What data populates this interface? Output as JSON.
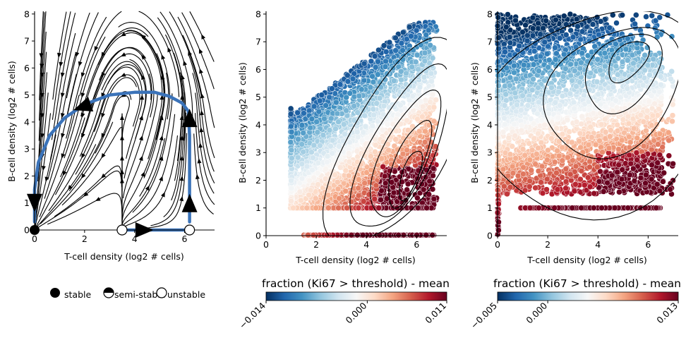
{
  "chart_data": [
    {
      "type": "streamplot",
      "xlabel": "T-cell density (log2 # cells)",
      "ylabel": "B-cell density (log2 # cells)",
      "xlim": [
        0,
        7.2
      ],
      "ylim": [
        0,
        8.1
      ],
      "xticks": [
        "0",
        "2",
        "4",
        "6"
      ],
      "yticks": [
        "0",
        "1",
        "2",
        "3",
        "4",
        "5",
        "6",
        "7",
        "8"
      ],
      "fixed_points": [
        {
          "x": 0,
          "y": 0,
          "type": "stable"
        },
        {
          "x": 3.5,
          "y": 0,
          "type": "unstable"
        },
        {
          "x": 6.2,
          "y": 0,
          "type": "unstable"
        }
      ],
      "trajectories": [
        [
          [
            0,
            0.3
          ],
          [
            0,
            1.5
          ],
          [
            0.15,
            2.5
          ],
          [
            0.6,
            3.5
          ],
          [
            1.2,
            4.15
          ],
          [
            2,
            4.65
          ],
          [
            3,
            5.0
          ],
          [
            4,
            5.1
          ],
          [
            4.8,
            5.1
          ],
          [
            5.4,
            4.95
          ],
          [
            5.9,
            4.7
          ],
          [
            6.15,
            4.4
          ],
          [
            6.2,
            3.5
          ],
          [
            6.2,
            2.0
          ],
          [
            6.2,
            0.9
          ],
          [
            6.2,
            0.3
          ]
        ],
        [
          [
            3.7,
            0
          ],
          [
            5.0,
            0
          ],
          [
            6.1,
            0
          ]
        ]
      ],
      "legend": [
        "stable",
        "semi-stable",
        "unstable"
      ]
    },
    {
      "type": "scatter",
      "xlabel": "T-cell density (log2 # cells)",
      "ylabel": "B-cell density (log2 # cells)",
      "xlim": [
        0,
        7.2
      ],
      "ylim": [
        0,
        8.1
      ],
      "xticks": [
        "0",
        "2",
        "4",
        "6"
      ],
      "yticks": [
        "0",
        "1",
        "2",
        "3",
        "4",
        "5",
        "6",
        "7",
        "8"
      ],
      "colorbar": {
        "label": "fraction (Ki67 > threshold) - mean",
        "min": -0.014,
        "max": 0.011,
        "ticks": [
          "−0.014",
          "0.000",
          "0.011"
        ],
        "colormap": "RdBu_r"
      }
    },
    {
      "type": "scatter",
      "xlabel": "T-cell density (log2 # cells)",
      "ylabel": "B-cell density (log2 # cells)",
      "xlim": [
        0,
        7.2
      ],
      "ylim": [
        0,
        8.1
      ],
      "xticks": [
        "0",
        "2",
        "4",
        "6"
      ],
      "yticks": [
        "0",
        "1",
        "2",
        "3",
        "4",
        "5",
        "6",
        "7",
        "8"
      ],
      "colorbar": {
        "label": "fraction (Ki67 > threshold) - mean",
        "min": -0.005,
        "max": 0.013,
        "ticks": [
          "−0.005",
          "0.000",
          "0.013"
        ],
        "colormap": "RdBu_r"
      }
    }
  ],
  "colors": {
    "trajectory": "#3b73b9",
    "cmap_low": "#053061",
    "cmap_mid": "#f7f7f7",
    "cmap_high": "#67001f"
  }
}
